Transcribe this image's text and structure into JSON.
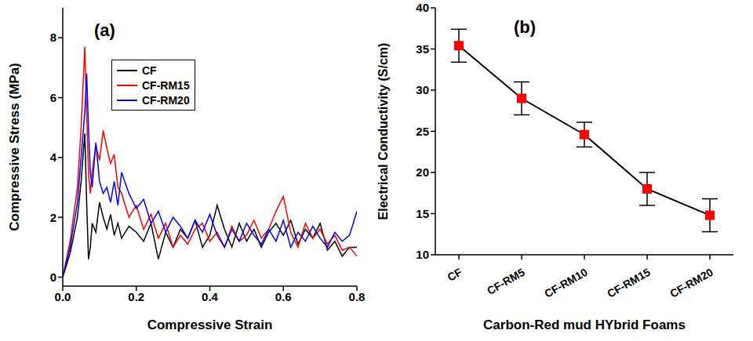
{
  "chart_data": [
    {
      "type": "line",
      "panel": "(a)",
      "x_label": "Compressive Strain",
      "y_label": "Compressive Stress (MPa)",
      "x": [
        0,
        0.02,
        0.04,
        0.05,
        0.06,
        0.065,
        0.07,
        0.075,
        0.08,
        0.09,
        0.1,
        0.11,
        0.12,
        0.13,
        0.14,
        0.15,
        0.16,
        0.18,
        0.2,
        0.22,
        0.24,
        0.26,
        0.28,
        0.3,
        0.32,
        0.34,
        0.36,
        0.38,
        0.4,
        0.42,
        0.44,
        0.46,
        0.48,
        0.5,
        0.52,
        0.54,
        0.56,
        0.58,
        0.6,
        0.62,
        0.64,
        0.66,
        0.68,
        0.7,
        0.72,
        0.74,
        0.76,
        0.78,
        0.8
      ],
      "series": [
        {
          "name": "CF",
          "color": "#000000",
          "values": [
            0,
            0.8,
            2.0,
            3.2,
            4.8,
            2.5,
            0.6,
            1.0,
            1.8,
            1.5,
            2.5,
            2.0,
            1.6,
            2.1,
            1.4,
            1.8,
            1.3,
            1.7,
            1.5,
            1.2,
            1.8,
            0.6,
            1.5,
            1.0,
            1.6,
            1.3,
            1.9,
            1.0,
            1.4,
            2.4,
            1.6,
            1.0,
            1.8,
            1.2,
            1.6,
            1.0,
            1.5,
            1.8,
            1.4,
            1.9,
            1.1,
            1.6,
            1.3,
            1.8,
            0.9,
            1.2,
            0.7,
            1.0,
            1.0
          ]
        },
        {
          "name": "CF-RM15",
          "color": "#ff0000",
          "values": [
            0,
            1.2,
            3.0,
            5.0,
            7.7,
            5.5,
            3.5,
            2.8,
            3.5,
            4.4,
            3.9,
            4.9,
            4.3,
            3.8,
            4.1,
            3.0,
            2.8,
            2.0,
            2.4,
            1.6,
            2.1,
            1.3,
            1.8,
            1.0,
            1.4,
            1.1,
            1.6,
            1.8,
            1.2,
            1.5,
            1.0,
            1.7,
            1.2,
            1.4,
            1.9,
            1.3,
            1.6,
            2.2,
            2.7,
            1.5,
            1.0,
            1.8,
            1.3,
            1.6,
            1.1,
            1.4,
            0.9,
            1.0,
            0.7
          ]
        },
        {
          "name": "CF-RM20",
          "color": "#0000ff",
          "values": [
            0,
            1.0,
            2.5,
            4.0,
            5.5,
            6.8,
            5.0,
            3.5,
            3.0,
            4.5,
            3.2,
            2.8,
            3.0,
            2.5,
            3.2,
            2.4,
            3.5,
            2.8,
            2.3,
            2.6,
            1.8,
            2.2,
            1.5,
            2.0,
            1.7,
            1.3,
            1.9,
            1.5,
            2.1,
            1.4,
            1.0,
            1.6,
            1.2,
            1.8,
            1.4,
            1.1,
            1.6,
            1.2,
            1.9,
            1.0,
            1.5,
            1.2,
            1.7,
            1.3,
            1.0,
            1.5,
            1.2,
            1.4,
            2.2
          ]
        }
      ],
      "xlim": [
        0,
        0.8
      ],
      "xticks": [
        {
          "value": 0,
          "label": "0.0"
        },
        0.2,
        0.4,
        0.6,
        0.8
      ],
      "ylim": [
        -0.3,
        9
      ],
      "yticks": [
        0,
        2,
        4,
        6,
        8
      ],
      "grid": false,
      "legend": "top left"
    },
    {
      "type": "line",
      "panel": "(b)",
      "x_label": "Carbon-Red mud  HYbrid Foams",
      "y_label": "Electrical Conductivity (S/cm)",
      "categories": [
        "CF",
        "CF-RM5",
        "CF-RM10",
        "CF-RM15",
        "CF-RM20"
      ],
      "series": [
        {
          "name": "Electrical Conductivity",
          "color": "#ff0000",
          "marker": "square",
          "values": [
            35.4,
            29.0,
            24.6,
            18.0,
            14.8
          ],
          "errors": [
            2.0,
            2.0,
            1.5,
            2.0,
            2.0
          ]
        }
      ],
      "ylim": [
        10,
        40
      ],
      "yticks": [
        10,
        15,
        20,
        25,
        30,
        35,
        40
      ],
      "grid": false
    }
  ]
}
